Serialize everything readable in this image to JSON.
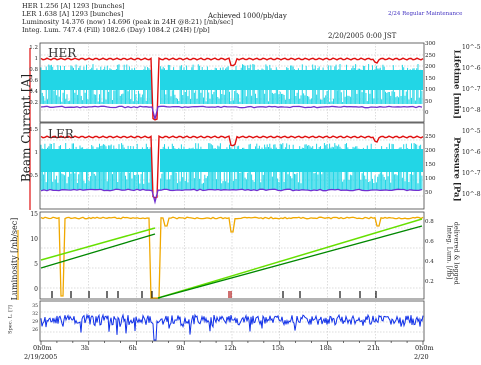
{
  "header": {
    "her_line": "HER         1.256  [A]    1293  [bunches]",
    "ler_line": "LER         1.638  [A]    1293  [bunches]",
    "lum_line": "Luminosity  14.376  (now)     14.696  (peak in 24H @8:21)  [/nb/sec]",
    "integ_line": "Integ. Lum.  747.4  (Fill)    1082.6  (Day)   1084.2  (24H)  [/pb]",
    "achieved": "Achieved 1000/pb/day",
    "maintenance": "2/24 Regular Maintenance",
    "timestamp": "2/20/2005  0:00 JST"
  },
  "panels": {
    "her_label": "HER",
    "ler_label": "LER",
    "beam_current_axis": "Beam Current [A]",
    "lifetime_axis": "Lifetime [min]",
    "pressure_axis": "Pressure [Pa]",
    "luminosity_axis": "Luminosity [/nb/sec]",
    "integ_axis_1": "Integ. Lum. [/fb]",
    "integ_axis_2": "delivered & logged",
    "spec_axis": "Spec. L. [?]"
  },
  "ticks": {
    "her_left": [
      "1.2",
      "1",
      "0.8",
      "0.6",
      "0.4",
      "0.2"
    ],
    "her_right": [
      "300",
      "250",
      "200",
      "150",
      "100",
      "50",
      "0"
    ],
    "ler_left": [
      "1.5",
      "1",
      "0.5"
    ],
    "ler_right": [
      "250",
      "200",
      "150",
      "100",
      "50"
    ],
    "lum_left": [
      "15",
      "10",
      "5",
      "0"
    ],
    "lum_right": [
      "0.8",
      "0.6",
      "0.4",
      "0.2"
    ],
    "spec_left": [
      "35",
      "32",
      "29",
      "26"
    ],
    "sci_right": [
      "10^-5",
      "10^-6",
      "10^-7",
      "10^-8",
      "10^-5",
      "10^-6",
      "10^-7",
      "10^-8"
    ],
    "x_labels": [
      "0h0m",
      "3h",
      "6h",
      "9h",
      "12h",
      "15h",
      "18h",
      "21h",
      "0h0m"
    ],
    "x_dates": [
      "2/19/2005",
      "2/20"
    ]
  },
  "colors": {
    "beam_red": "#e01010",
    "lifetime_cyan": "#22d6e6",
    "pressure_purple": "#7030d0",
    "lum_orange": "#f0a800",
    "integ_green_light": "#66e000",
    "integ_green_dark": "#008800",
    "spec_blue": "#1030e8"
  }
}
